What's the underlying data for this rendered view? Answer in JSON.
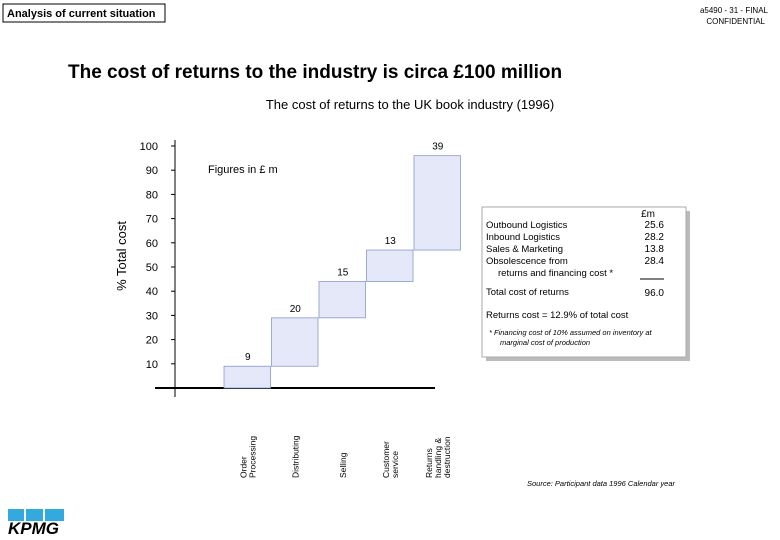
{
  "header": {
    "section": "Analysis of current situation",
    "ref": "a5490 - 31 - FINAL",
    "confidential": "CONFIDENTIAL",
    "title": "The cost of returns to the industry is circa £100 million"
  },
  "chart_data": {
    "type": "waterfall",
    "title": "The cost of returns to the UK book industry (1996)",
    "ylabel": "% Total cost",
    "annotation": "Figures in £ m",
    "categories": [
      [
        "Order",
        "Processing"
      ],
      [
        "Distributing"
      ],
      [
        "Selling"
      ],
      [
        "Customer",
        "service"
      ],
      [
        "Returns",
        "handling &",
        "destruction"
      ]
    ],
    "values": [
      9,
      20,
      15,
      13,
      39
    ],
    "color": "#e4e8f8",
    "ylim": [
      0,
      100
    ],
    "yticks": [
      10,
      20,
      30,
      40,
      50,
      60,
      70,
      80,
      90,
      100
    ]
  },
  "table": {
    "unit": "£m",
    "rows": [
      [
        [
          "Outbound Logistics"
        ],
        "25.6"
      ],
      [
        [
          "Inbound Logistics"
        ],
        "28.2"
      ],
      [
        [
          "Sales & Marketing"
        ],
        "13.8"
      ],
      [
        [
          "Obsolescence from",
          "returns and financing cost *"
        ],
        "28.4"
      ]
    ],
    "total": [
      "Total cost of returns",
      "96.0"
    ],
    "returns_cost": "Returns cost = 12.9% of total cost",
    "footnote": [
      "* Financing cost of 10% assumed on inventory at",
      "marginal cost of production"
    ]
  },
  "source": "Source: Participant data 1996 Calendar year",
  "logo": "KPMG"
}
